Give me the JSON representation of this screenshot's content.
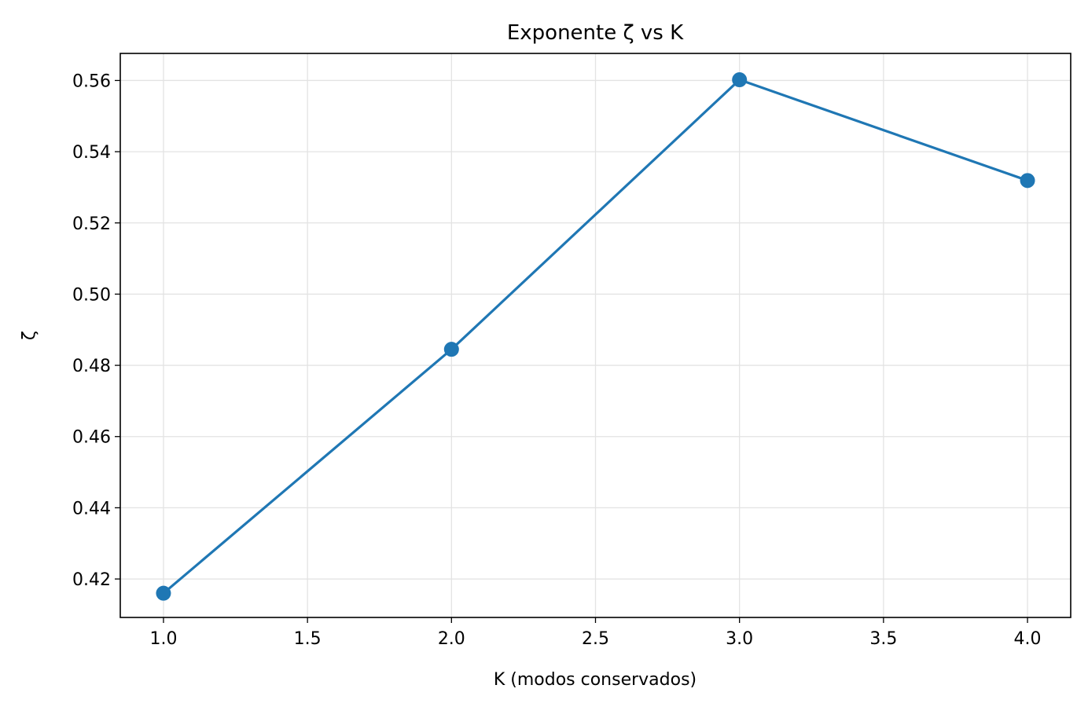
{
  "chart_data": {
    "type": "line",
    "title": "Exponente ζ vs K",
    "xlabel": "K (modos conservados)",
    "ylabel": "ζ",
    "x": [
      1.0,
      2.0,
      3.0,
      4.0
    ],
    "series": [
      {
        "values": [
          0.416,
          0.4845,
          0.5602,
          0.5319
        ],
        "color": "#1f77b4"
      }
    ],
    "xlim": [
      0.85,
      4.15
    ],
    "ylim": [
      0.4092,
      0.5676
    ],
    "xticks": [
      "1.0",
      "1.5",
      "2.0",
      "2.5",
      "3.0",
      "3.5",
      "4.0"
    ],
    "yticks": [
      "0.42",
      "0.44",
      "0.46",
      "0.48",
      "0.50",
      "0.52",
      "0.54",
      "0.56"
    ],
    "grid": true,
    "legend": "none"
  }
}
